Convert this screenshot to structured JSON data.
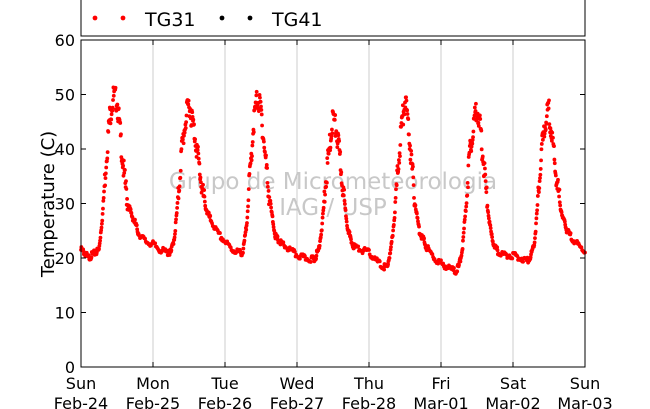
{
  "chart_data": {
    "type": "scatter",
    "title": "",
    "xlabel": "",
    "ylabel": "Temperature (C)",
    "ylim": [
      0,
      60
    ],
    "yticks": [
      0,
      10,
      20,
      30,
      40,
      50,
      60
    ],
    "xlim": [
      0,
      7
    ],
    "xticks": [
      {
        "x": 0,
        "day": "Sun",
        "date": "Feb-24"
      },
      {
        "x": 1,
        "day": "Mon",
        "date": "Feb-25"
      },
      {
        "x": 2,
        "day": "Tue",
        "date": "Feb-26"
      },
      {
        "x": 3,
        "day": "Wed",
        "date": "Feb-27"
      },
      {
        "x": 4,
        "day": "Thu",
        "date": "Feb-28"
      },
      {
        "x": 5,
        "day": "Fri",
        "date": "Mar-01"
      },
      {
        "x": 6,
        "day": "Sat",
        "date": "Mar-02"
      },
      {
        "x": 7,
        "day": "Sun",
        "date": "Mar-03"
      }
    ],
    "grid": "vertical",
    "legend": {
      "placement": "top",
      "entries": [
        {
          "name": "TG31",
          "color": "#ff0000"
        },
        {
          "name": "TG41",
          "color": "#000000"
        }
      ]
    },
    "watermark": [
      "Grupo de Micrometeorologia",
      "IAG / USP"
    ],
    "series": [
      {
        "name": "TG31",
        "color": "#ff0000",
        "x": [
          0.0,
          0.05,
          0.1,
          0.15,
          0.2,
          0.25,
          0.3,
          0.35,
          0.4,
          0.45,
          0.5,
          0.55,
          0.6,
          0.65,
          0.7,
          0.75,
          0.8,
          0.9,
          1.0,
          1.1,
          1.2,
          1.25,
          1.3,
          1.35,
          1.4,
          1.45,
          1.5,
          1.55,
          1.6,
          1.65,
          1.7,
          1.75,
          1.8,
          1.9,
          2.0,
          2.1,
          2.2,
          2.25,
          2.3,
          2.35,
          2.4,
          2.45,
          2.5,
          2.55,
          2.6,
          2.65,
          2.7,
          2.75,
          2.8,
          2.9,
          3.0,
          3.1,
          3.2,
          3.25,
          3.3,
          3.35,
          3.4,
          3.45,
          3.5,
          3.55,
          3.6,
          3.65,
          3.7,
          3.75,
          3.8,
          3.9,
          4.0,
          4.1,
          4.2,
          4.25,
          4.3,
          4.35,
          4.4,
          4.45,
          4.5,
          4.55,
          4.6,
          4.65,
          4.7,
          4.75,
          4.8,
          4.9,
          5.0,
          5.1,
          5.2,
          5.25,
          5.3,
          5.35,
          5.4,
          5.45,
          5.5,
          5.55,
          5.6,
          5.65,
          5.7,
          5.75,
          5.8,
          5.9,
          6.0,
          6.1,
          6.2,
          6.25,
          6.3,
          6.35,
          6.4,
          6.45,
          6.5,
          6.55,
          6.6,
          6.65,
          6.7,
          6.75,
          6.8,
          6.9,
          7.0
        ],
        "y": [
          21.5,
          21.0,
          20.0,
          20.5,
          21.0,
          21.5,
          28.0,
          38.0,
          46.0,
          49.5,
          49.0,
          42.0,
          35.0,
          30.0,
          28.0,
          26.5,
          24.5,
          23.0,
          22.5,
          21.5,
          21.0,
          21.0,
          24.0,
          31.0,
          40.0,
          45.0,
          48.5,
          45.0,
          41.0,
          36.0,
          31.0,
          28.5,
          27.0,
          24.5,
          23.0,
          21.5,
          21.0,
          21.0,
          26.0,
          36.0,
          45.0,
          49.5,
          47.0,
          40.0,
          33.0,
          28.0,
          24.0,
          23.0,
          22.5,
          21.5,
          20.5,
          20.0,
          19.8,
          20.0,
          21.5,
          26.0,
          34.0,
          40.0,
          46.0,
          43.0,
          38.0,
          31.0,
          26.0,
          23.0,
          22.0,
          21.5,
          21.0,
          19.5,
          18.3,
          18.5,
          21.0,
          27.0,
          36.0,
          44.0,
          49.0,
          44.0,
          36.0,
          29.0,
          25.0,
          23.5,
          22.0,
          20.0,
          19.0,
          18.3,
          17.5,
          18.5,
          22.0,
          30.0,
          40.0,
          44.0,
          48.0,
          43.0,
          36.0,
          29.0,
          24.0,
          22.0,
          21.0,
          20.5,
          20.5,
          20.0,
          19.5,
          20.5,
          23.0,
          31.0,
          40.0,
          45.0,
          47.0,
          41.0,
          35.0,
          30.0,
          27.0,
          25.0,
          24.0,
          22.5,
          21.0
        ]
      }
    ]
  }
}
